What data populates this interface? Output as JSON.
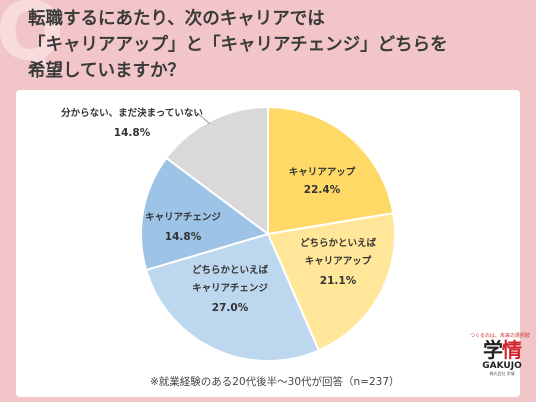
{
  "title": {
    "line1": "転職するにあたり、次のキャリアでは",
    "line2": "「キャリアアップ」と「キャリアチェンジ」どちらを",
    "line3": "希望していますか？"
  },
  "chart_data": {
    "type": "pie",
    "start_angle_deg": 0,
    "direction": "clockwise",
    "slices": [
      {
        "label": "キャリアアップ",
        "value": 22.4,
        "value_label": "22.4%",
        "color": "#ffd966"
      },
      {
        "label": "どちらかといえば\nキャリアアップ",
        "value": 21.1,
        "value_label": "21.1%",
        "color": "#ffe699"
      },
      {
        "label": "どちらかといえば\nキャリアチェンジ",
        "value": 27.0,
        "value_label": "27.0%",
        "color": "#bdd7ee"
      },
      {
        "label": "キャリアチェンジ",
        "value": 14.8,
        "value_label": "14.8%",
        "color": "#9dc3e6"
      },
      {
        "label": "分からない、まだ決まっていない",
        "value": 14.8,
        "value_label": "14.8%",
        "color": "#d9d9d9"
      }
    ]
  },
  "note": "※就業経験のある20代後半～30代が回答（n=237）",
  "logo": {
    "tagline": "つくるのは、未来の選択肢",
    "kanji_a": "学",
    "kanji_b": "情",
    "romaji": "GAKUJO",
    "sub": "株式会社 学情"
  }
}
